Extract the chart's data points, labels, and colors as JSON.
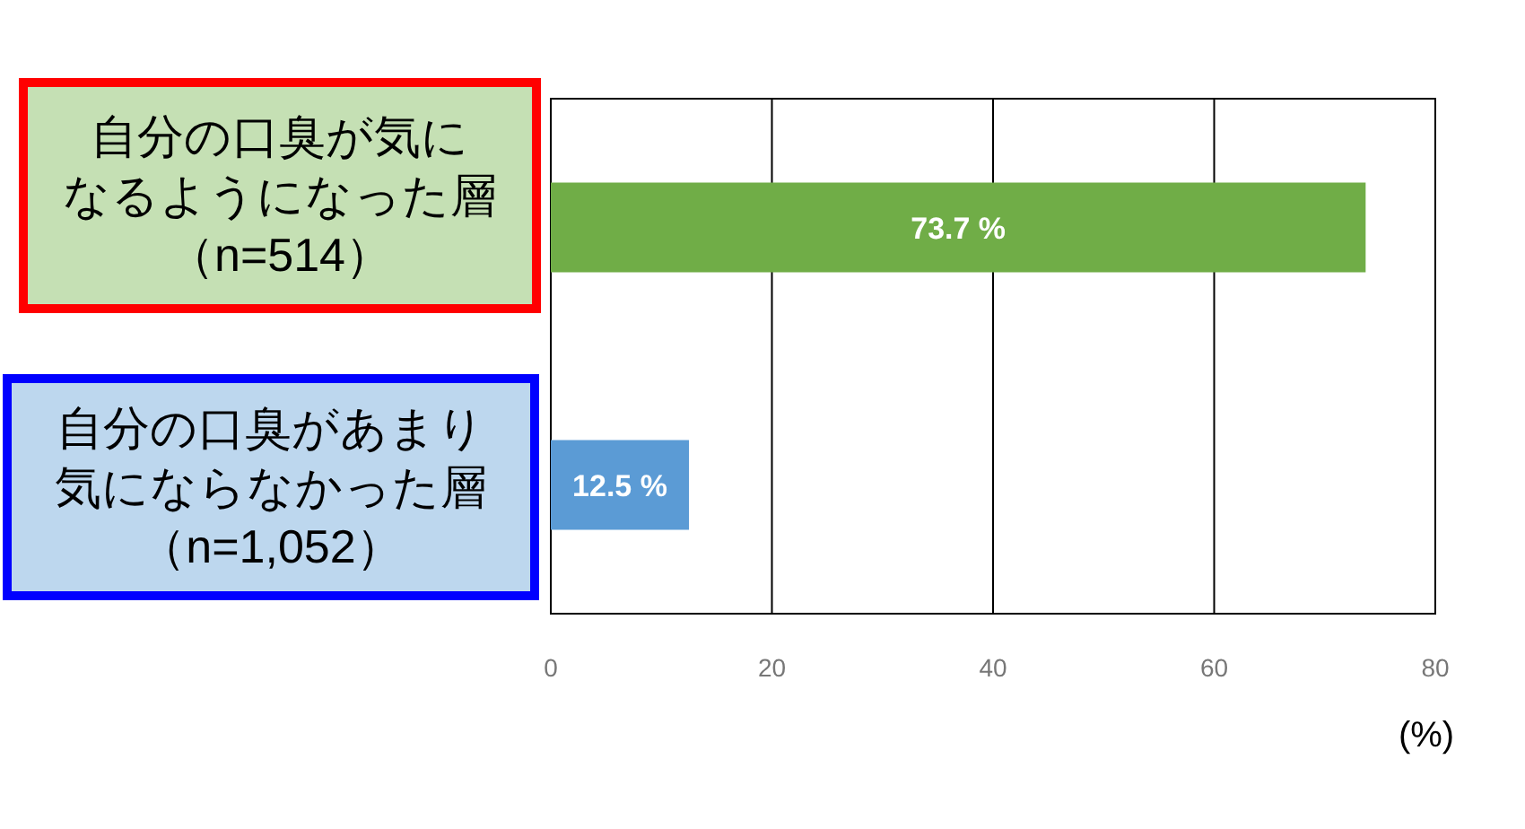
{
  "chart_data": {
    "type": "bar",
    "orientation": "horizontal",
    "categories": [
      "自分の口臭が気になるようになった層（n=514）",
      "自分の口臭があまり気にならなかった層（n=1,052）"
    ],
    "values": [
      73.7,
      12.5
    ],
    "colors": [
      "#70ad47",
      "#5b9bd5"
    ],
    "value_labels": [
      "73.7 %",
      "12.5 %"
    ],
    "xlim": [
      0,
      80
    ],
    "xticks": [
      0,
      20,
      40,
      60,
      80
    ],
    "grid": "x",
    "xlabel": "(%)"
  }
}
